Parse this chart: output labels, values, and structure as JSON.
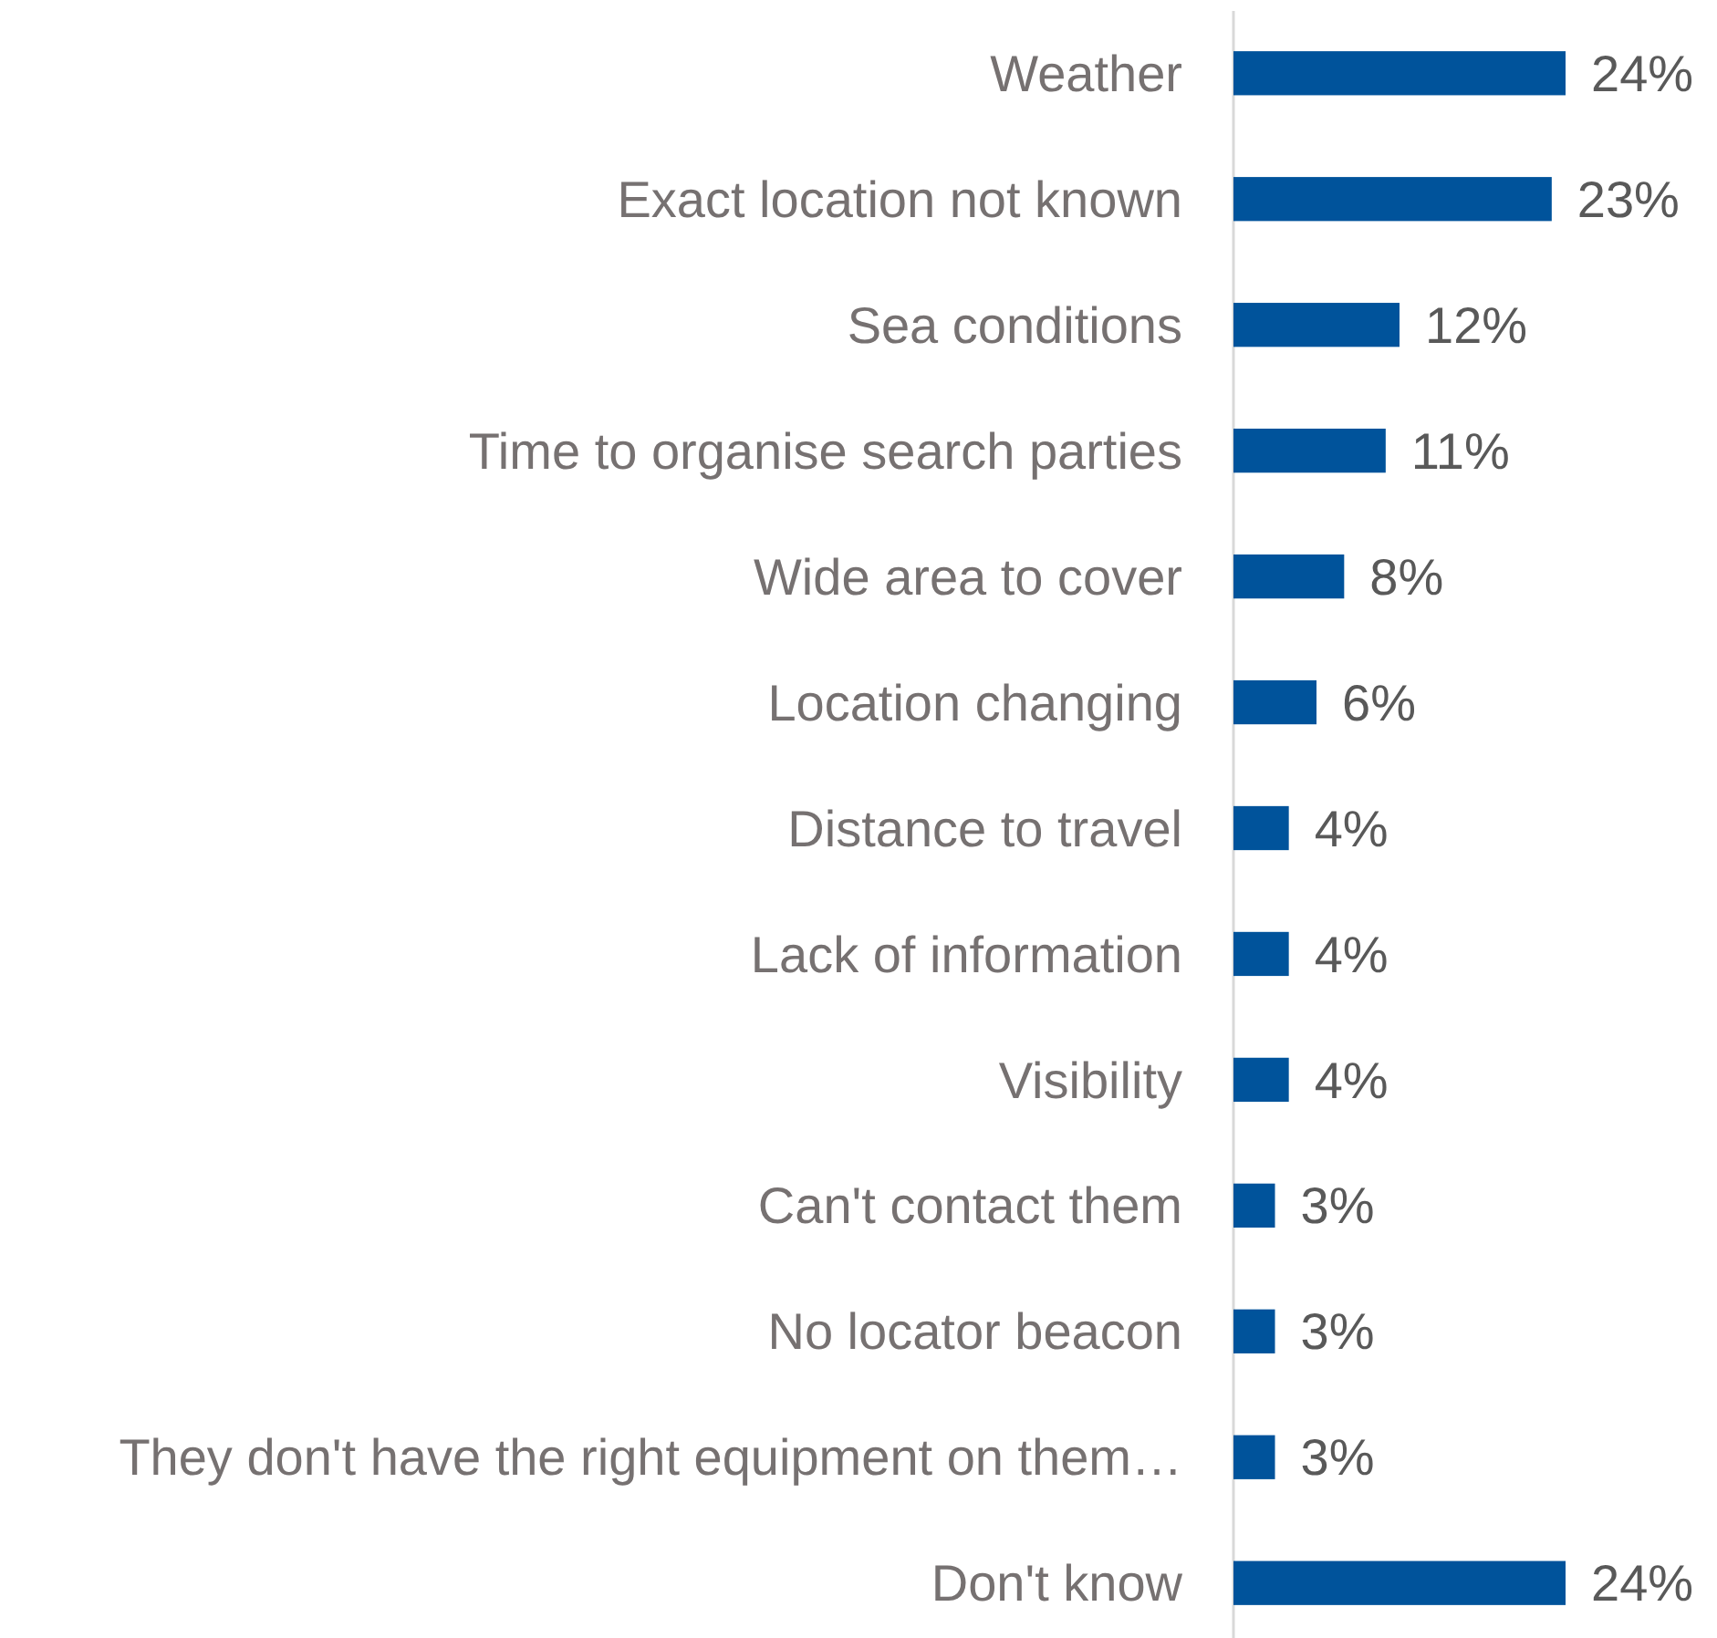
{
  "chart_data": {
    "type": "bar",
    "orientation": "horizontal",
    "categories": [
      "Weather",
      "Exact location not known",
      "Sea conditions",
      "Time to organise search parties",
      "Wide area to cover",
      "Location changing",
      "Distance to travel",
      "Lack of information",
      "Visibility",
      "Can't contact them",
      "No locator beacon",
      "They don't have the right equipment on them…",
      "Don't know"
    ],
    "values": [
      24,
      23,
      12,
      11,
      8,
      6,
      4,
      4,
      4,
      3,
      3,
      3,
      24
    ],
    "value_labels": [
      "24%",
      "23%",
      "12%",
      "11%",
      "8%",
      "6%",
      "4%",
      "4%",
      "4%",
      "3%",
      "3%",
      "3%",
      "24%"
    ],
    "color": "#00539b"
  }
}
